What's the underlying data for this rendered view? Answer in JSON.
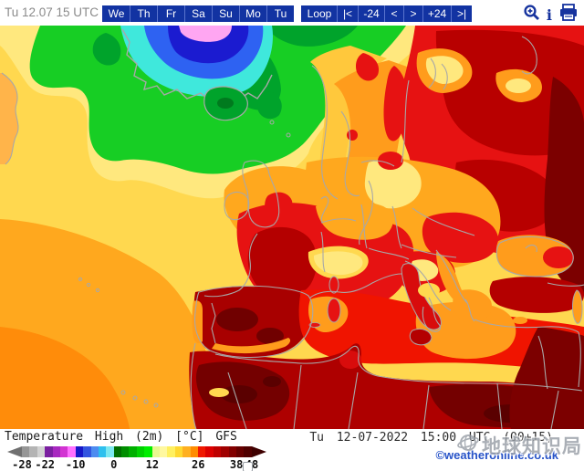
{
  "header": {
    "datetime_label": "Tu 12.07 15 UTC",
    "day_buttons": [
      "We",
      "Th",
      "Fr",
      "Sa",
      "Su",
      "Mo",
      "Tu"
    ],
    "loop_buttons": [
      "Loop",
      "|<",
      "-24",
      "<",
      ">",
      "+24",
      ">|"
    ],
    "icons": {
      "zoom": "magnifier-plus",
      "info": "i",
      "print": "printer"
    }
  },
  "map": {
    "palette": {
      "ocean_yellow": "#FFD84F",
      "pale_yellow": "#FFE87E",
      "ocean_orange": "#FFA81E",
      "deep_orange": "#FF8C0A",
      "green": "#17CE24",
      "dark_green": "#00A32B",
      "cyan": "#3FE8DC",
      "blue": "#2E62F2",
      "dark_blue": "#1B1BD0",
      "pink": "#FFA6F2",
      "red": "#E61212",
      "bright_red": "#F01400",
      "dark_red": "#B40000",
      "maroon": "#740000",
      "darkest_red": "#5A0000",
      "coast_gray": "#A8A8A8"
    }
  },
  "legend": {
    "title": "Temperature High (2m) [°C] GFS",
    "left_arrow_color": "#707070",
    "right_arrow_color": "#3E0000",
    "scale_colors": [
      "#969696",
      "#B4B4B4",
      "#D2D2D2",
      "#7A1FA0",
      "#A828C0",
      "#D233D2",
      "#FF70FF",
      "#1717C8",
      "#3355E0",
      "#4D8CF0",
      "#2EC0EE",
      "#7CE8F0",
      "#006E00",
      "#008E00",
      "#00B000",
      "#00D200",
      "#00EE00",
      "#E8F890",
      "#FFF8A0",
      "#FFF060",
      "#FFD830",
      "#FFB020",
      "#FF8C00",
      "#F01800",
      "#DC0000",
      "#BE0000",
      "#A00000",
      "#820000",
      "#660000",
      "#500000"
    ],
    "ticks": [
      {
        "value": "-28",
        "pos": 0
      },
      {
        "value": "-22",
        "pos": 10
      },
      {
        "value": "-10",
        "pos": 23.3
      },
      {
        "value": "0",
        "pos": 40
      },
      {
        "value": "12",
        "pos": 56.7
      },
      {
        "value": "26",
        "pos": 76.7
      },
      {
        "value": "38",
        "pos": 93.3
      },
      {
        "value": "48",
        "pos": 100
      }
    ],
    "datetime": "Tu 12-07-2022 15:00 UTC (00+15)",
    "copyright": "©weatheronline.co.uk"
  },
  "watermark": {
    "text": "地球知识局"
  }
}
